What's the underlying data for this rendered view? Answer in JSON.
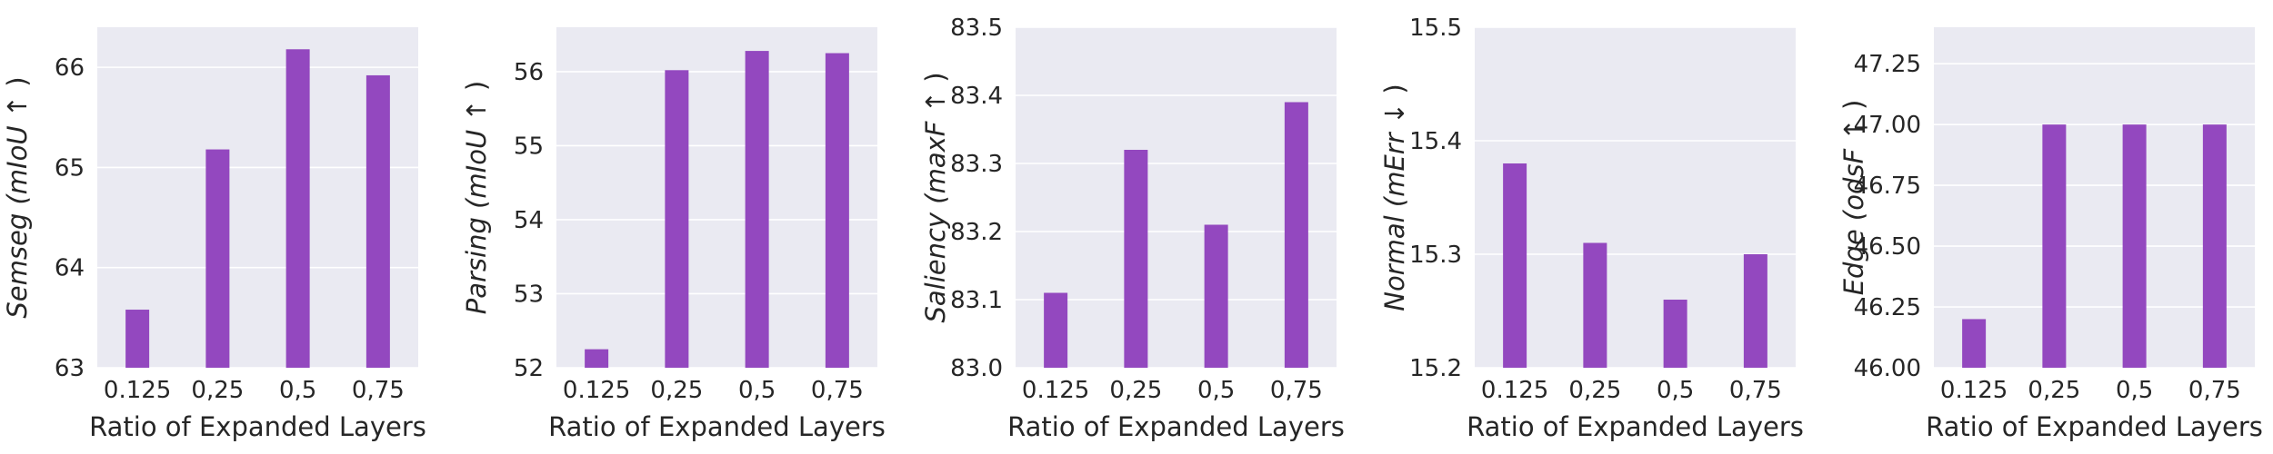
{
  "chart_data": [
    {
      "type": "bar",
      "ylabel": {
        "task": "Semseg",
        "metric": "mIoU",
        "arrow": "↑"
      },
      "xlabel": "Ratio of Expanded Layers",
      "categories": [
        "0.125",
        "0,25",
        "0,5",
        "0,75"
      ],
      "values": [
        63.58,
        65.18,
        66.18,
        65.92
      ],
      "ylim": [
        63,
        66.4
      ],
      "yticks": [
        "63",
        "64",
        "65",
        "66"
      ],
      "ytick_values": [
        63,
        64,
        65,
        66
      ],
      "grid": true,
      "color": "#9348bf"
    },
    {
      "type": "bar",
      "ylabel": {
        "task": "Parsing",
        "metric": "mIoU",
        "arrow": "↑"
      },
      "xlabel": "Ratio of Expanded Layers",
      "categories": [
        "0.125",
        "0,25",
        "0,5",
        "0,75"
      ],
      "values": [
        52.25,
        56.02,
        56.28,
        56.25
      ],
      "ylim": [
        52,
        56.6
      ],
      "yticks": [
        "52",
        "53",
        "54",
        "55",
        "56"
      ],
      "ytick_values": [
        52,
        53,
        54,
        55,
        56
      ],
      "grid": true,
      "color": "#9348bf"
    },
    {
      "type": "bar",
      "ylabel": {
        "task": "Saliency",
        "metric": "maxF",
        "arrow": "↑"
      },
      "xlabel": "Ratio of Expanded Layers",
      "categories": [
        "0.125",
        "0,25",
        "0,5",
        "0,75"
      ],
      "values": [
        83.11,
        83.32,
        83.21,
        83.39
      ],
      "ylim": [
        83.0,
        83.5
      ],
      "yticks": [
        "83.0",
        "83.1",
        "83.2",
        "83.3",
        "83.4",
        "83.5"
      ],
      "ytick_values": [
        83.0,
        83.1,
        83.2,
        83.3,
        83.4,
        83.5
      ],
      "grid": true,
      "color": "#9348bf"
    },
    {
      "type": "bar",
      "ylabel": {
        "task": "Normal",
        "metric": "mErr",
        "arrow": "↓"
      },
      "xlabel": "Ratio of Expanded Layers",
      "categories": [
        "0.125",
        "0,25",
        "0,5",
        "0,75"
      ],
      "values": [
        15.38,
        15.31,
        15.26,
        15.3
      ],
      "ylim": [
        15.2,
        15.5
      ],
      "yticks": [
        "15.2",
        "15.3",
        "15.4",
        "15.5"
      ],
      "ytick_values": [
        15.2,
        15.3,
        15.4,
        15.5
      ],
      "grid": true,
      "color": "#9348bf"
    },
    {
      "type": "bar",
      "ylabel": {
        "task": "Edge",
        "metric": "odsF",
        "arrow": "↑"
      },
      "xlabel": "Ratio of Expanded Layers",
      "categories": [
        "0.125",
        "0,25",
        "0,5",
        "0,75"
      ],
      "values": [
        46.2,
        47.0,
        47.0,
        47.0
      ],
      "ylim": [
        46.0,
        47.4
      ],
      "yticks": [
        "46.00",
        "46.25",
        "46.50",
        "46.75",
        "47.00",
        "47.25"
      ],
      "ytick_values": [
        46.0,
        46.25,
        46.5,
        46.75,
        47.0,
        47.25
      ],
      "grid": true,
      "color": "#9348bf"
    }
  ],
  "style": {
    "plot_background": "#eaeaf2",
    "grid_color": "#ffffff",
    "text_color": "#262626"
  }
}
